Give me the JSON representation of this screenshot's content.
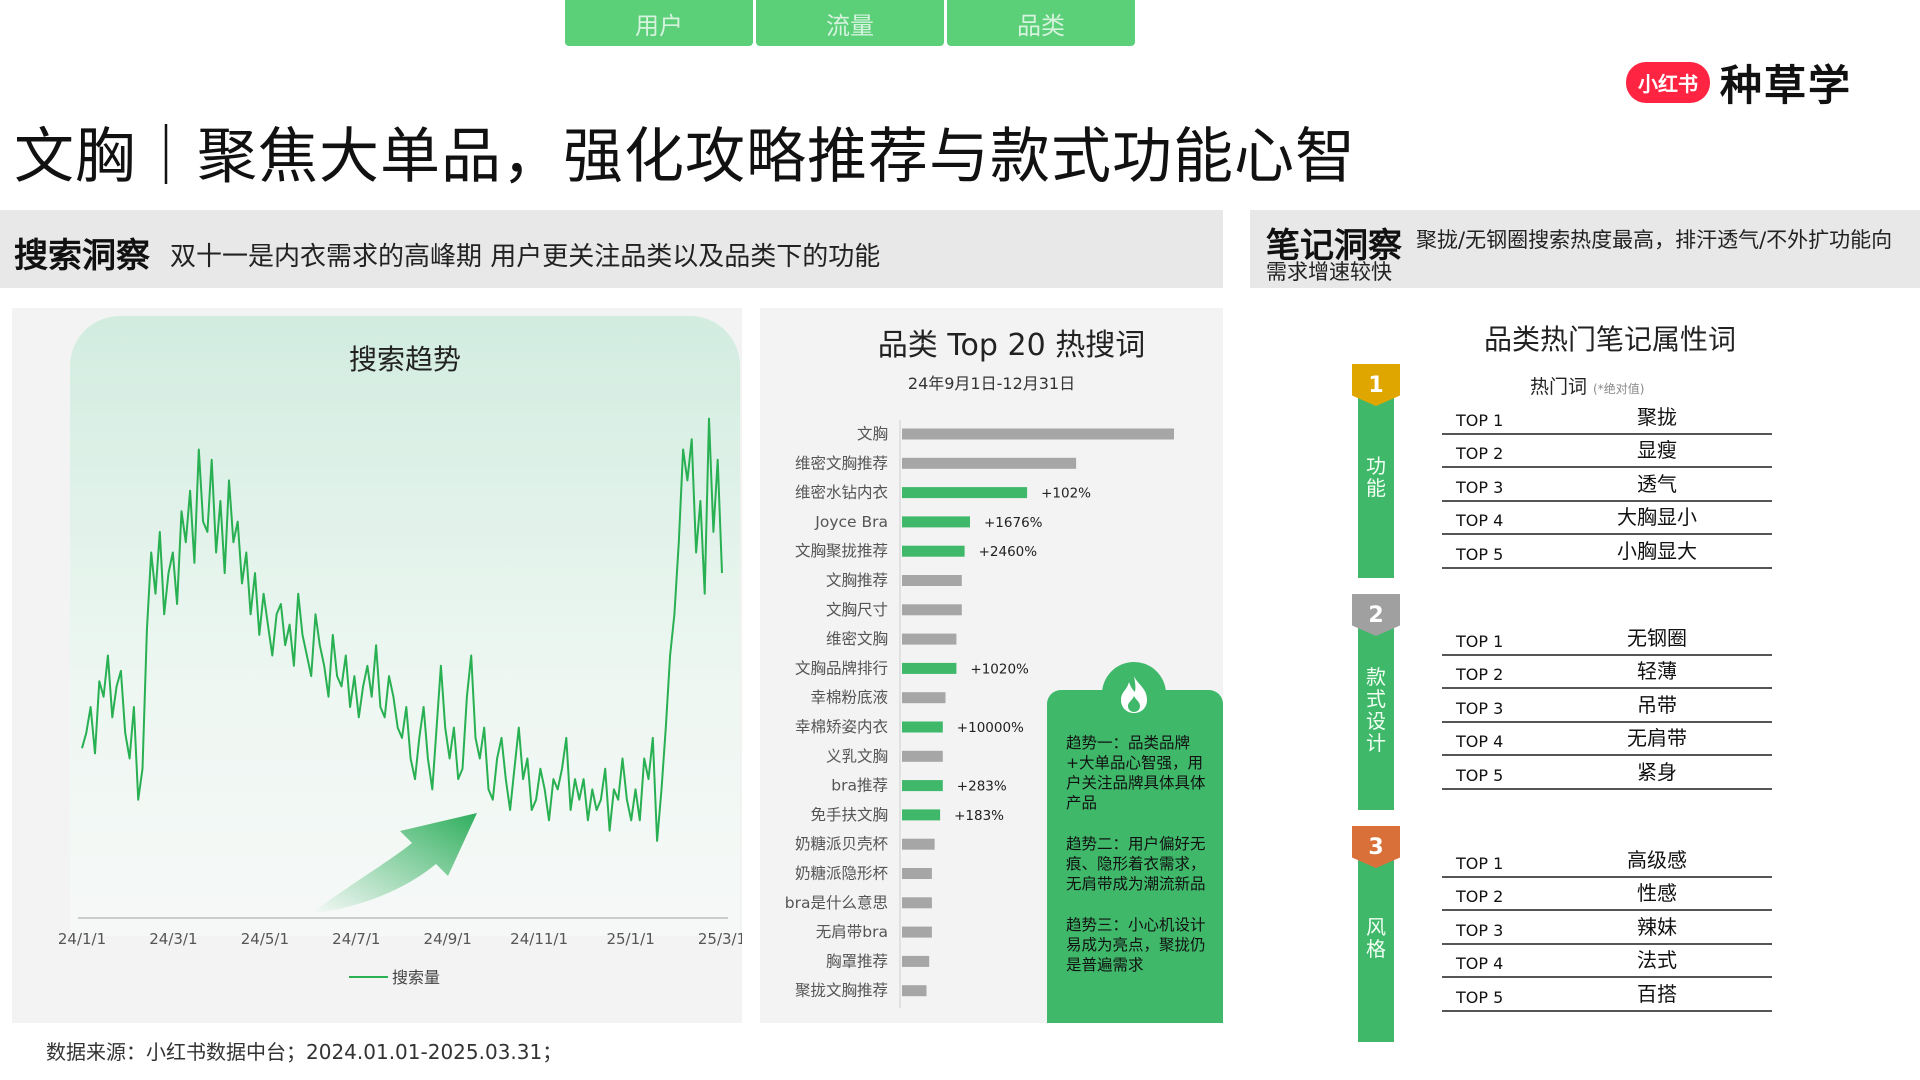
{
  "top_tabs": [
    "用户",
    "流量",
    "品类"
  ],
  "brand": {
    "badge": "小红书",
    "text": "种草学"
  },
  "page_title": "文胸｜聚焦大单品，强化攻略推荐与款式功能心智",
  "search_insight": {
    "head": "搜索洞察",
    "desc": "双十一是内衣需求的高峰期  用户更关注品类以及品类下的功能"
  },
  "note_insight": {
    "head": "笔记洞察",
    "desc": "聚拢/无钢圈搜索热度最高，排汗透气/不外扩功能向需求增速较快"
  },
  "colors": {
    "accent": "#3fb86a",
    "grey_bar": "#a6a6a6",
    "gold": "#e0a600",
    "silver": "#a0a0a0",
    "bronze": "#d9703a"
  },
  "insights": [
    "趋势一：品类品牌+大单品心智强，用户关注品牌具体具体产品",
    "趋势二：用户偏好无痕、隐形着衣需求，无肩带成为潮流新品",
    "趋势三：小心机设计易成为亮点，聚拢仍是普遍需求"
  ],
  "attributes": {
    "title": "品类热门笔记属性词",
    "hot_label": "热门词",
    "hot_note": "(*绝对值)",
    "groups": [
      {
        "num": "1",
        "label": "功能",
        "rows": [
          [
            "TOP 1",
            "聚拢"
          ],
          [
            "TOP 2",
            "显瘦"
          ],
          [
            "TOP 3",
            "透气"
          ],
          [
            "TOP 4",
            "大胸显小"
          ],
          [
            "TOP 5",
            "小胸显大"
          ]
        ]
      },
      {
        "num": "2",
        "label": "款式设计",
        "rows": [
          [
            "TOP 1",
            "无钢圈"
          ],
          [
            "TOP 2",
            "轻薄"
          ],
          [
            "TOP 3",
            "吊带"
          ],
          [
            "TOP 4",
            "无肩带"
          ],
          [
            "TOP 5",
            "紧身"
          ]
        ]
      },
      {
        "num": "3",
        "label": "风格",
        "rows": [
          [
            "TOP 1",
            "高级感"
          ],
          [
            "TOP 2",
            "性感"
          ],
          [
            "TOP 3",
            "辣妹"
          ],
          [
            "TOP 4",
            "法式"
          ],
          [
            "TOP 5",
            "百搭"
          ]
        ]
      }
    ]
  },
  "footer": "数据来源：小红书数据中台；2024.01.01-2025.03.31；",
  "chart_data": [
    {
      "type": "line",
      "title": "搜索趋势",
      "x_ticks": [
        "24/1/1",
        "24/3/1",
        "24/5/1",
        "24/7/1",
        "24/9/1",
        "24/11/1",
        "25/1/1",
        "25/3/1"
      ],
      "series": [
        {
          "name": "搜索量",
          "values": [
            32,
            35,
            40,
            31,
            45,
            42,
            50,
            38,
            44,
            47,
            35,
            30,
            40,
            22,
            28,
            55,
            70,
            62,
            74,
            58,
            66,
            70,
            60,
            78,
            72,
            82,
            68,
            90,
            76,
            74,
            88,
            70,
            80,
            66,
            84,
            72,
            76,
            64,
            70,
            58,
            66,
            54,
            62,
            56,
            50,
            58,
            60,
            52,
            56,
            48,
            62,
            54,
            50,
            46,
            58,
            52,
            48,
            42,
            54,
            46,
            44,
            50,
            40,
            46,
            38,
            44,
            48,
            42,
            52,
            40,
            38,
            46,
            42,
            36,
            34,
            40,
            30,
            26,
            34,
            40,
            30,
            24,
            36,
            48,
            36,
            30,
            36,
            26,
            28,
            42,
            50,
            34,
            30,
            36,
            24,
            22,
            30,
            34,
            26,
            20,
            28,
            36,
            26,
            30,
            20,
            22,
            28,
            24,
            18,
            26,
            24,
            28,
            34,
            20,
            26,
            22,
            26,
            18,
            24,
            20,
            22,
            28,
            16,
            24,
            22,
            30,
            22,
            18,
            24,
            18,
            30,
            26,
            34,
            14,
            24,
            36,
            50,
            58,
            72,
            90,
            84,
            92,
            70,
            80,
            62,
            96,
            74,
            88,
            66
          ]
        }
      ],
      "ylim": [
        0,
        100
      ]
    },
    {
      "type": "bar",
      "title": "品类 Top 20 热搜词",
      "subtitle": "24年9月1日-12月31日",
      "categories": [
        "文胸",
        "维密文胸推荐",
        "维密水钻内衣",
        "Joyce Bra",
        "文胸聚拢推荐",
        "文胸推荐",
        "文胸尺寸",
        "维密文胸",
        "文胸品牌排行",
        "幸棉粉底液",
        "幸棉矫姿内衣",
        "义乳文胸",
        "bra推荐",
        "免手扶文胸",
        "奶糖派贝壳杯",
        "奶糖派隐形杯",
        "bra是什么意思",
        "无肩带bra",
        "胸罩推荐",
        "聚拢文胸推荐"
      ],
      "values": [
        100,
        64,
        46,
        25,
        23,
        22,
        22,
        20,
        20,
        16,
        15,
        15,
        15,
        14,
        12,
        11,
        11,
        11,
        10,
        9
      ],
      "highlight": [
        false,
        false,
        true,
        true,
        true,
        false,
        false,
        false,
        true,
        false,
        true,
        false,
        true,
        true,
        false,
        false,
        false,
        false,
        false,
        false
      ],
      "labels": [
        "",
        "",
        "+102%",
        "+1676%",
        "+2460%",
        "",
        "",
        "",
        "+1020%",
        "",
        "+10000%",
        "",
        "+283%",
        "+183%",
        "",
        "",
        "",
        "",
        "",
        ""
      ]
    }
  ]
}
